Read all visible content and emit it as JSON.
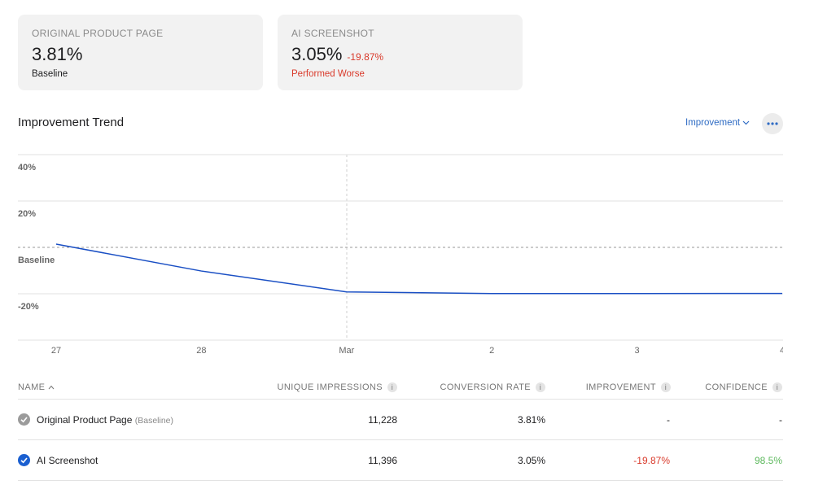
{
  "cards": [
    {
      "label": "ORIGINAL PRODUCT PAGE",
      "value": "3.81%",
      "note": "Baseline"
    },
    {
      "label": "AI SCREENSHOT",
      "value": "3.05%",
      "change": "-19.87%",
      "note": "Performed Worse"
    }
  ],
  "chart_data": {
    "type": "line",
    "title": "Improvement Trend",
    "metric_menu": "Improvement",
    "categories": [
      "27",
      "28",
      "Mar",
      "2",
      "3",
      "4"
    ],
    "values": [
      1.4,
      -10.2,
      -19.2,
      -19.9,
      -19.9,
      -19.87
    ],
    "color": "#1a4fc4",
    "ylim": [
      -40,
      40
    ],
    "yticks": [
      {
        "value": 40,
        "label": "40%"
      },
      {
        "value": 20,
        "label": "20%"
      },
      {
        "value": 0,
        "label": "Baseline"
      },
      {
        "value": -20,
        "label": "-20%"
      }
    ],
    "grid": true
  },
  "table": {
    "headers": [
      "NAME",
      "UNIQUE IMPRESSIONS",
      "CONVERSION RATE",
      "IMPROVEMENT",
      "CONFIDENCE"
    ],
    "rows": [
      {
        "name": "Original Product Page",
        "tag": "(Baseline)",
        "cells": [
          "11,228",
          "3.81%",
          "-",
          "-"
        ]
      },
      {
        "name": "AI Screenshot",
        "cells": [
          "11,396",
          "3.05%",
          "-19.87%",
          "98.5%"
        ]
      }
    ]
  }
}
